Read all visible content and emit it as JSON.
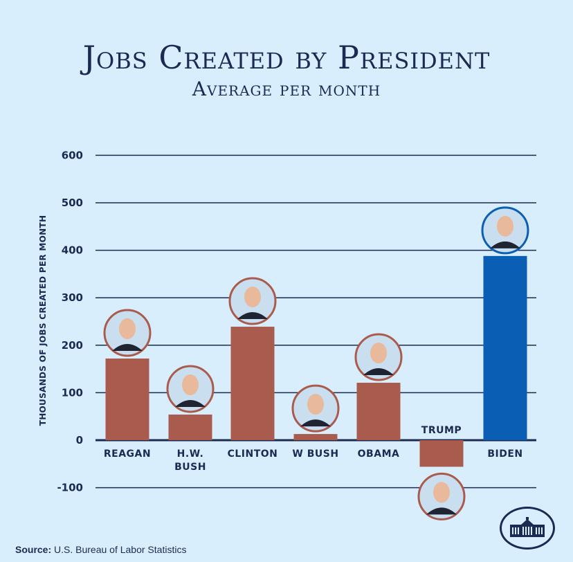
{
  "chart_data": {
    "type": "bar",
    "title": "Jobs Created by President",
    "subtitle": "Average per month",
    "xlabel": "",
    "ylabel": "Thousands of Jobs Created per Month",
    "ylim": [
      -100,
      600
    ],
    "yticks": [
      600,
      500,
      400,
      300,
      200,
      100,
      0,
      -100
    ],
    "ytick_labels": [
      "600",
      "500",
      "400",
      "300",
      "200",
      "100",
      "0",
      "-100"
    ],
    "grid": true,
    "categories": [
      "Reagan",
      "H.W. Bush",
      "Clinton",
      "W Bush",
      "Obama",
      "Trump",
      "Biden"
    ],
    "category_label_lines": [
      [
        "Reagan"
      ],
      [
        "H.W.",
        "Bush"
      ],
      [
        "Clinton"
      ],
      [
        "W Bush"
      ],
      [
        "Obama"
      ],
      [
        "Trump"
      ],
      [
        "Biden"
      ]
    ],
    "values": [
      172,
      54,
      239,
      13,
      121,
      -56,
      388
    ],
    "colors": [
      "#a95c4d",
      "#a95c4d",
      "#a95c4d",
      "#a95c4d",
      "#a95c4d",
      "#a95c4d",
      "#0a5fb4"
    ],
    "portrait_ring_colors": [
      "#a95c4d",
      "#a95c4d",
      "#a95c4d",
      "#a95c4d",
      "#a95c4d",
      "#a95c4d",
      "#0a5fb4"
    ],
    "source": "U.S. Bureau of Labor Statistics"
  },
  "header": {
    "title": "Jobs Created by President",
    "subtitle": "Average per month"
  },
  "footer": {
    "source_label": "Source:",
    "source_text": "U.S. Bureau of Labor Statistics",
    "logo_icon": "white-house-icon"
  },
  "colors": {
    "background": "#d9eefc",
    "text": "#1b2a52",
    "bar_default": "#a95c4d",
    "bar_highlight": "#0a5fb4"
  }
}
